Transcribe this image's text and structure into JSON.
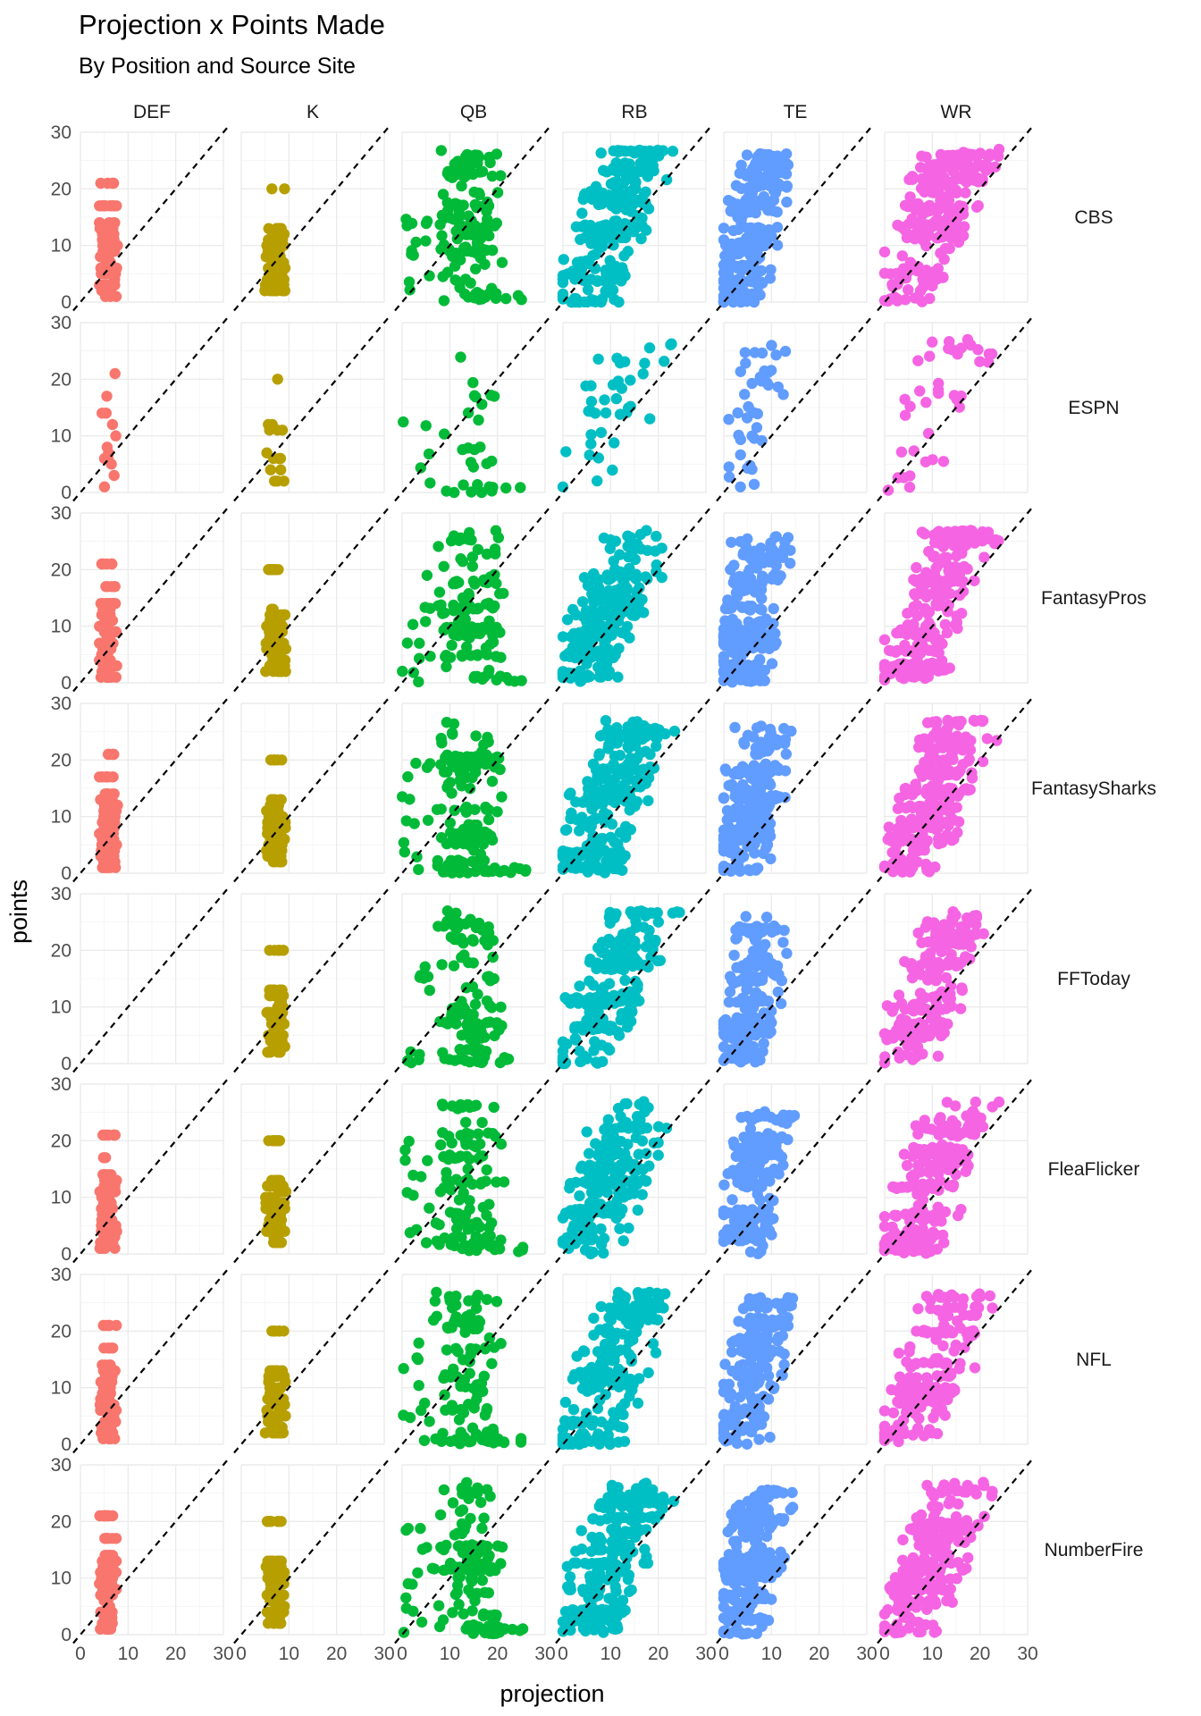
{
  "chart_data": {
    "type": "scatter",
    "title": "Projection x Points Made",
    "subtitle": "By Position and Source Site",
    "xlabel": "projection",
    "ylabel": "points",
    "xlim": [
      0,
      30
    ],
    "ylim": [
      0,
      30
    ],
    "x_ticks": [
      "0",
      "10",
      "20",
      "30"
    ],
    "y_ticks": [
      "0",
      "10",
      "20",
      "30"
    ],
    "grid": true,
    "legend": "none",
    "reference_line": "y = x (dashed)",
    "columns": [
      "DEF",
      "K",
      "QB",
      "RB",
      "TE",
      "WR"
    ],
    "rows": [
      "CBS",
      "ESPN",
      "FantasyPros",
      "FantasySharks",
      "FFToday",
      "FleaFlicker",
      "NFL",
      "NumberFire"
    ],
    "position_colors": {
      "DEF": "#F8766D",
      "K": "#B79F00",
      "QB": "#00BA38",
      "RB": "#00BFC4",
      "TE": "#619CFF",
      "WR": "#F564E3"
    },
    "panel_summary": {
      "DEF": {
        "projection_range": [
          4,
          9
        ],
        "points_range": [
          1,
          21
        ]
      },
      "K": {
        "projection_range": [
          4,
          11
        ],
        "points_range": [
          2,
          20
        ]
      },
      "QB": {
        "projection_range": [
          0,
          28
        ],
        "points_range": [
          0,
          27
        ]
      },
      "RB": {
        "projection_range": [
          0,
          26
        ],
        "points_range": [
          0,
          27
        ]
      },
      "TE": {
        "projection_range": [
          0,
          22
        ],
        "points_range": [
          0,
          26
        ]
      },
      "WR": {
        "projection_range": [
          0,
          24
        ],
        "points_range": [
          0,
          27
        ]
      }
    },
    "empty_panels": [
      [
        "FFToday",
        "DEF"
      ]
    ]
  }
}
